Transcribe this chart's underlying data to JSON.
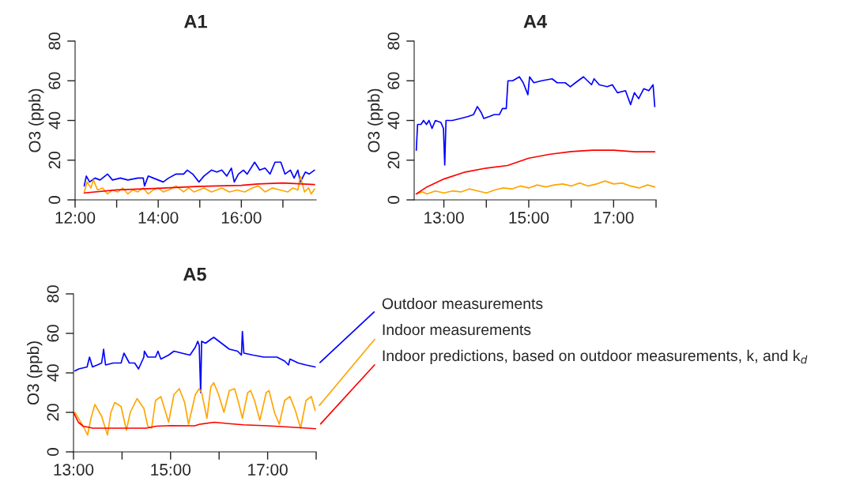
{
  "chart_data": [
    {
      "type": "line",
      "title": "A1",
      "ylabel": "O3 (ppb)",
      "xlim": [
        12.0,
        17.8
      ],
      "ylim": [
        0,
        80
      ],
      "yticks": [
        0,
        20,
        40,
        60,
        80
      ],
      "xticks": [
        {
          "value": 12,
          "label": "12:00"
        },
        {
          "value": 13,
          "label": null
        },
        {
          "value": 14,
          "label": "14:00"
        },
        {
          "value": 15,
          "label": null
        },
        {
          "value": 16,
          "label": "16:00"
        },
        {
          "value": 17,
          "label": null
        }
      ],
      "grid": false,
      "marker": "none",
      "line_style": "solid",
      "series": [
        {
          "color": "#0000ff",
          "x": [
            12.22,
            12.27,
            12.35,
            12.48,
            12.6,
            12.78,
            12.9,
            13.09,
            13.27,
            13.51,
            13.64,
            13.67,
            13.76,
            13.88,
            14.0,
            14.12,
            14.25,
            14.43,
            14.61,
            14.7,
            14.83,
            14.98,
            15.1,
            15.28,
            15.41,
            15.53,
            15.65,
            15.76,
            15.83,
            15.93,
            16.05,
            16.14,
            16.32,
            16.44,
            16.57,
            16.69,
            16.81,
            16.95,
            17.05,
            17.18,
            17.27,
            17.36,
            17.42,
            17.54,
            17.63,
            17.76
          ],
          "values": [
            7,
            12,
            9,
            11,
            10,
            13,
            10,
            11,
            10,
            11,
            11,
            7,
            12,
            11,
            10,
            9,
            11,
            13,
            13,
            15,
            13,
            9,
            12,
            15,
            14,
            15,
            12,
            16,
            9,
            13,
            15,
            13,
            19,
            15,
            16,
            13,
            19,
            19,
            13,
            15,
            11,
            15,
            9,
            14,
            13,
            15
          ]
        },
        {
          "color": "#ffa500",
          "x": [
            12.22,
            12.29,
            12.38,
            12.44,
            12.54,
            12.66,
            12.78,
            12.9,
            13.03,
            13.15,
            13.27,
            13.39,
            13.51,
            13.64,
            13.76,
            13.88,
            14.0,
            14.12,
            14.25,
            14.43,
            14.61,
            14.73,
            14.86,
            14.98,
            15.1,
            15.28,
            15.41,
            15.53,
            15.71,
            15.9,
            16.08,
            16.26,
            16.41,
            16.57,
            16.75,
            16.93,
            17.12,
            17.24,
            17.36,
            17.42,
            17.52,
            17.62,
            17.68,
            17.76
          ],
          "values": [
            4,
            9,
            6,
            10,
            5,
            6,
            3,
            5,
            4,
            6,
            3,
            5,
            4,
            6,
            3,
            5,
            6,
            4,
            5,
            7,
            4,
            6,
            4,
            5,
            6,
            4,
            5,
            6,
            4,
            5,
            4,
            6,
            7,
            4,
            6,
            5,
            4,
            6,
            5,
            12,
            4,
            6,
            3,
            5.5
          ]
        },
        {
          "color": "#ff0000",
          "x": [
            12.22,
            13.0,
            14.0,
            15.0,
            16.0,
            16.4,
            17.0,
            17.76
          ],
          "values": [
            3.5,
            5,
            5.8,
            6.8,
            7.3,
            8,
            8.5,
            7.7
          ]
        }
      ]
    },
    {
      "type": "line",
      "title": "A4",
      "ylabel": "O3 (ppb)",
      "xlim": [
        12.3,
        18.0
      ],
      "ylim": [
        0,
        80
      ],
      "yticks": [
        0,
        20,
        40,
        60,
        80
      ],
      "xticks": [
        {
          "value": 13,
          "label": "13:00"
        },
        {
          "value": 14,
          "label": null
        },
        {
          "value": 15,
          "label": "15:00"
        },
        {
          "value": 16,
          "label": null
        },
        {
          "value": 17,
          "label": "17:00"
        },
        {
          "value": 18,
          "label": null
        }
      ],
      "grid": false,
      "marker": "none",
      "line_style": "solid",
      "series": [
        {
          "color": "#0000ff",
          "x": [
            12.35,
            12.38,
            12.46,
            12.52,
            12.59,
            12.65,
            12.72,
            12.8,
            12.93,
            12.99,
            13.02,
            13.05,
            13.2,
            13.39,
            13.57,
            13.7,
            13.79,
            13.88,
            13.94,
            14.07,
            14.19,
            14.31,
            14.38,
            14.47,
            14.51,
            14.62,
            14.78,
            14.87,
            14.98,
            15.02,
            15.12,
            15.3,
            15.55,
            15.67,
            15.86,
            15.98,
            16.1,
            16.29,
            16.48,
            16.54,
            16.66,
            16.85,
            16.97,
            17.09,
            17.28,
            17.4,
            17.49,
            17.59,
            17.71,
            17.83,
            17.93,
            17.97
          ],
          "values": [
            25,
            38,
            38,
            40,
            38,
            40,
            36,
            40,
            39,
            36,
            17.5,
            40,
            40,
            41,
            42,
            43,
            47,
            44,
            41,
            42,
            43,
            43,
            46,
            46,
            60,
            60,
            62,
            59,
            53,
            62,
            59,
            60,
            61,
            59,
            59,
            57,
            59,
            62,
            58,
            61,
            58,
            57,
            58,
            54,
            55,
            48,
            54,
            51,
            56,
            55,
            58,
            47
          ]
        },
        {
          "color": "#ffa500",
          "x": [
            12.35,
            12.5,
            12.6,
            12.8,
            13.0,
            13.2,
            13.4,
            13.6,
            13.8,
            14.0,
            14.2,
            14.4,
            14.6,
            14.8,
            15.0,
            15.2,
            15.4,
            15.6,
            15.8,
            16.0,
            16.2,
            16.4,
            16.6,
            16.8,
            17.0,
            17.2,
            17.4,
            17.6,
            17.8,
            17.97
          ],
          "values": [
            3,
            4,
            3,
            4.5,
            3.5,
            4.5,
            4,
            5.5,
            4.5,
            3.5,
            5,
            6,
            5.5,
            7,
            6,
            7.5,
            6.5,
            7.5,
            8,
            7,
            8.5,
            7,
            8,
            9.5,
            8,
            8.5,
            7,
            6,
            7.5,
            6.5
          ]
        },
        {
          "color": "#ff0000",
          "x": [
            12.35,
            12.6,
            13.0,
            13.5,
            14.0,
            14.5,
            15.0,
            15.5,
            16.0,
            16.5,
            17.0,
            17.5,
            17.97
          ],
          "values": [
            3,
            6.5,
            10.5,
            14,
            16,
            17.3,
            21,
            23,
            24.3,
            25,
            25,
            24.2,
            24.2
          ]
        }
      ]
    },
    {
      "type": "line",
      "title": "A5",
      "ylabel": "O3 (ppb)",
      "xlim": [
        13.0,
        18.0
      ],
      "ylim": [
        0,
        80
      ],
      "yticks": [
        0,
        20,
        40,
        60,
        80
      ],
      "xticks": [
        {
          "value": 13,
          "label": "13:00"
        },
        {
          "value": 14,
          "label": null
        },
        {
          "value": 15,
          "label": "15:00"
        },
        {
          "value": 16,
          "label": null
        },
        {
          "value": 17,
          "label": "17:00"
        },
        {
          "value": 18,
          "label": null
        }
      ],
      "grid": false,
      "marker": "none",
      "line_style": "solid",
      "legend": "right",
      "series": [
        {
          "name": "Outdoor measurements",
          "color": "#0000ff",
          "x": [
            13.03,
            13.11,
            13.28,
            13.33,
            13.39,
            13.49,
            13.58,
            13.62,
            13.66,
            13.82,
            13.98,
            14.04,
            14.15,
            14.26,
            14.34,
            14.45,
            14.46,
            14.53,
            14.69,
            14.74,
            14.8,
            14.96,
            15.07,
            15.23,
            15.4,
            15.51,
            15.56,
            15.59,
            15.62,
            15.64,
            15.72,
            15.83,
            15.89,
            16.05,
            16.21,
            16.38,
            16.46,
            16.48,
            16.51,
            16.7,
            16.92,
            17.19,
            17.35,
            17.43,
            17.46,
            17.63,
            17.79,
            17.98
          ],
          "values": [
            41,
            42,
            43,
            48,
            43,
            44,
            45,
            52,
            44,
            45,
            45,
            50,
            45,
            45,
            42,
            48,
            51,
            48,
            48,
            51,
            47,
            49,
            51,
            50,
            49,
            53,
            56,
            54,
            30,
            56,
            55,
            57,
            58,
            55,
            52,
            51,
            49,
            61,
            50,
            49,
            48,
            48,
            46,
            44,
            47,
            45,
            44,
            43
          ]
        },
        {
          "name": "Indoor measurements",
          "color": "#ffa500",
          "x": [
            13.03,
            13.22,
            13.29,
            13.36,
            13.44,
            13.58,
            13.7,
            13.77,
            13.85,
            13.98,
            14.09,
            14.17,
            14.31,
            14.45,
            14.53,
            14.61,
            14.69,
            14.8,
            14.96,
            15.07,
            15.18,
            15.29,
            15.37,
            15.51,
            15.59,
            15.64,
            15.75,
            15.83,
            15.89,
            15.99,
            16.1,
            16.21,
            16.32,
            16.4,
            16.48,
            16.59,
            16.65,
            16.73,
            16.84,
            16.97,
            17.03,
            17.14,
            17.24,
            17.35,
            17.46,
            17.57,
            17.68,
            17.79,
            17.9,
            17.98
          ],
          "values": [
            20,
            12,
            8.5,
            17,
            24,
            18,
            8.5,
            20,
            25,
            23,
            11,
            20,
            27,
            22,
            13,
            12,
            26,
            28,
            15,
            29,
            32,
            25,
            14,
            29,
            32,
            30,
            17,
            33,
            35,
            29,
            20,
            31,
            32,
            25,
            17,
            30,
            31,
            26,
            16,
            30,
            31,
            20,
            14,
            26,
            28,
            21,
            12,
            26,
            28,
            21
          ]
        },
        {
          "name": "Indoor predictions, based on outdoor measurements, k, and k$_{d}$",
          "color": "#ff0000",
          "x": [
            13.0,
            13.1,
            13.2,
            13.4,
            14.0,
            14.5,
            14.7,
            15.0,
            15.5,
            15.6,
            15.9,
            16.2,
            16.5,
            17.0,
            17.5,
            18.0
          ],
          "values": [
            20,
            15,
            13,
            12,
            12,
            12,
            13,
            13.3,
            13.2,
            14,
            15,
            14.3,
            13.7,
            13.2,
            12.5,
            11.7
          ]
        }
      ]
    }
  ]
}
